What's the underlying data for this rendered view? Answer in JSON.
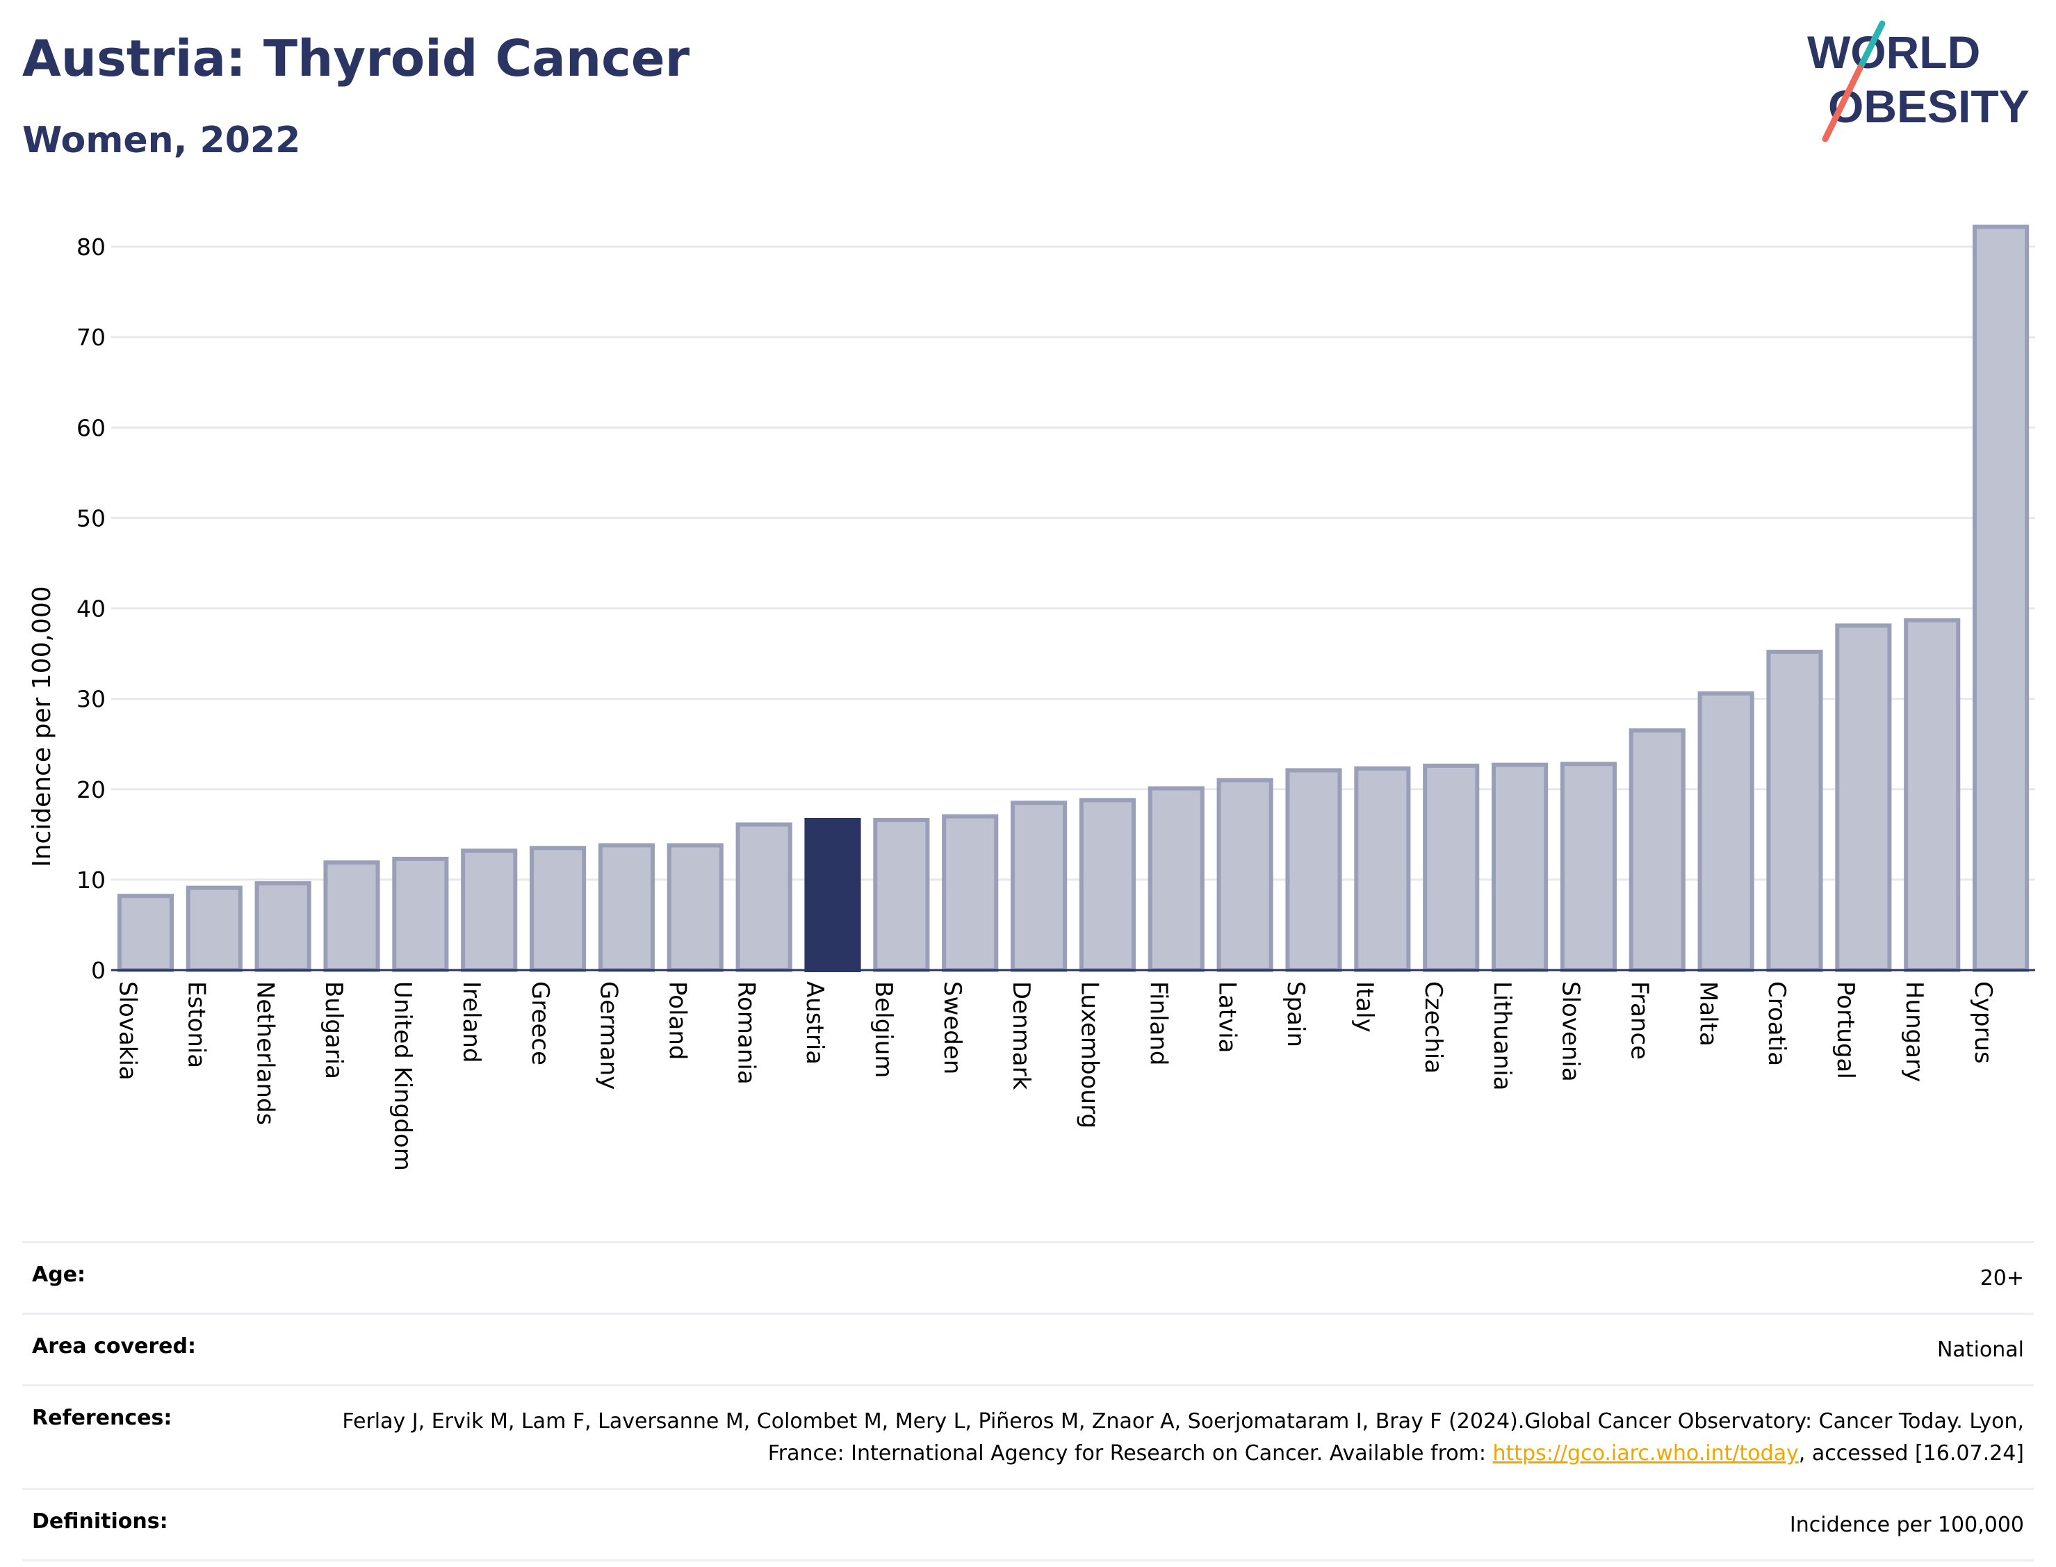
{
  "header": {
    "title": "Austria: Thyroid Cancer",
    "subtitle": "Women, 2022",
    "logo_line1": "WORLD",
    "logo_line2": "OBESITY"
  },
  "colors": {
    "title": "#2b3564",
    "bar": "#bfc2d0",
    "bar_outline": "#9a9fb9",
    "highlight": "#2b3564",
    "grid": "#e6e8ee",
    "logo_teal": "#2bb3b1",
    "logo_coral": "#ee6a5a",
    "link": "#f0a500"
  },
  "chart_data": {
    "type": "bar",
    "ylabel": "Incidence per 100,000",
    "ylim": [
      0,
      85
    ],
    "yticks": [
      0,
      10,
      20,
      30,
      40,
      50,
      60,
      70,
      80
    ],
    "highlight": "Austria",
    "grid": true,
    "categories": [
      "Slovakia",
      "Estonia",
      "Netherlands",
      "Bulgaria",
      "United Kingdom",
      "Ireland",
      "Greece",
      "Germany",
      "Poland",
      "Romania",
      "Austria",
      "Belgium",
      "Sweden",
      "Denmark",
      "Luxembourg",
      "Finland",
      "Latvia",
      "Spain",
      "Italy",
      "Czechia",
      "Lithuania",
      "Slovenia",
      "France",
      "Malta",
      "Croatia",
      "Portugal",
      "Hungary",
      "Cyprus"
    ],
    "values": [
      8.2,
      9.1,
      9.6,
      11.9,
      12.3,
      13.2,
      13.5,
      13.8,
      13.8,
      16.1,
      16.6,
      16.6,
      17.0,
      18.5,
      18.8,
      20.1,
      21.0,
      22.1,
      22.3,
      22.6,
      22.7,
      22.8,
      26.5,
      30.6,
      35.2,
      38.1,
      38.7,
      82.2
    ]
  },
  "info": {
    "age_label": "Age:",
    "age_value": "20+",
    "area_label": "Area covered:",
    "area_value": "National",
    "references_label": "References:",
    "references_text": "Ferlay J, Ervik M, Lam F, Laversanne M, Colombet M, Mery L, Piñeros M, Znaor A, Soerjomataram I, Bray F (2024).Global Cancer Observatory: Cancer Today. Lyon, France: International Agency for Research on Cancer. Available from: ",
    "references_link": "https://gco.iarc.who.int/today",
    "references_tail": ", accessed [16.07.24]",
    "definitions_label": "Definitions:",
    "definitions_value": "Incidence per 100,000"
  }
}
